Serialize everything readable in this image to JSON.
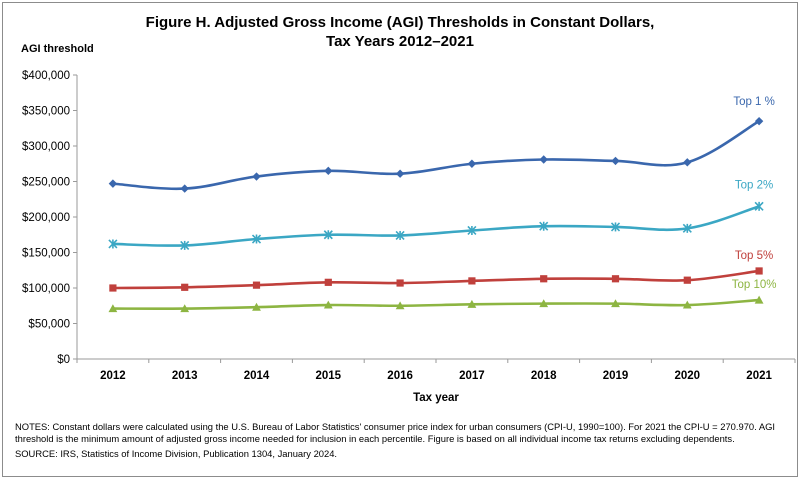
{
  "chart_data": {
    "type": "line",
    "title_line1": "Figure H. Adjusted Gross Income (AGI) Thresholds in Constant Dollars,",
    "title_line2": "Tax Years 2012–2021",
    "ylabel": "AGI threshold",
    "xlabel": "Tax year",
    "categories": [
      "2012",
      "2013",
      "2014",
      "2015",
      "2016",
      "2017",
      "2018",
      "2019",
      "2020",
      "2021"
    ],
    "ylim": [
      0,
      400000
    ],
    "yticks": [
      {
        "value": 0,
        "label": "$0"
      },
      {
        "value": 50000,
        "label": "$50,000"
      },
      {
        "value": 100000,
        "label": "$100,000"
      },
      {
        "value": 150000,
        "label": "$150,000"
      },
      {
        "value": 200000,
        "label": "$200,000"
      },
      {
        "value": 250000,
        "label": "$250,000"
      },
      {
        "value": 300000,
        "label": "$300,000"
      },
      {
        "value": 350000,
        "label": "$350,000"
      },
      {
        "value": 400000,
        "label": "$400,000"
      }
    ],
    "grid": false,
    "series": [
      {
        "name": "Top 1 %",
        "color": "#3a67ad",
        "marker": "diamond",
        "values": [
          247000,
          240000,
          257000,
          265000,
          261000,
          275000,
          281000,
          279000,
          277000,
          335000
        ]
      },
      {
        "name": "Top 2%",
        "color": "#3ba7c4",
        "marker": "asterisk",
        "values": [
          162000,
          160000,
          169000,
          175000,
          174000,
          181000,
          187000,
          186000,
          184000,
          215000
        ]
      },
      {
        "name": "Top 5%",
        "color": "#c0403c",
        "marker": "square",
        "values": [
          100000,
          101000,
          104000,
          108000,
          107000,
          110000,
          113000,
          113000,
          111000,
          124000
        ]
      },
      {
        "name": "Top 10%",
        "color": "#8db542",
        "marker": "triangle",
        "values": [
          71000,
          71000,
          73000,
          76000,
          75000,
          77000,
          78000,
          78000,
          76000,
          83000
        ]
      }
    ]
  },
  "notes": {
    "line1": "NOTES: Constant dollars were calculated using the U.S. Bureau of Labor Statistics' consumer price index for urban consumers (CPI-U, 1990=100). For 2021 the CPI-U = 270.970. AGI threshold is the minimum amount of adjusted gross income needed for inclusion in each percentile. Figure is based on all individual income tax returns excluding dependents.",
    "source": "SOURCE: IRS, Statistics of Income Division, Publication 1304, January 2024."
  }
}
